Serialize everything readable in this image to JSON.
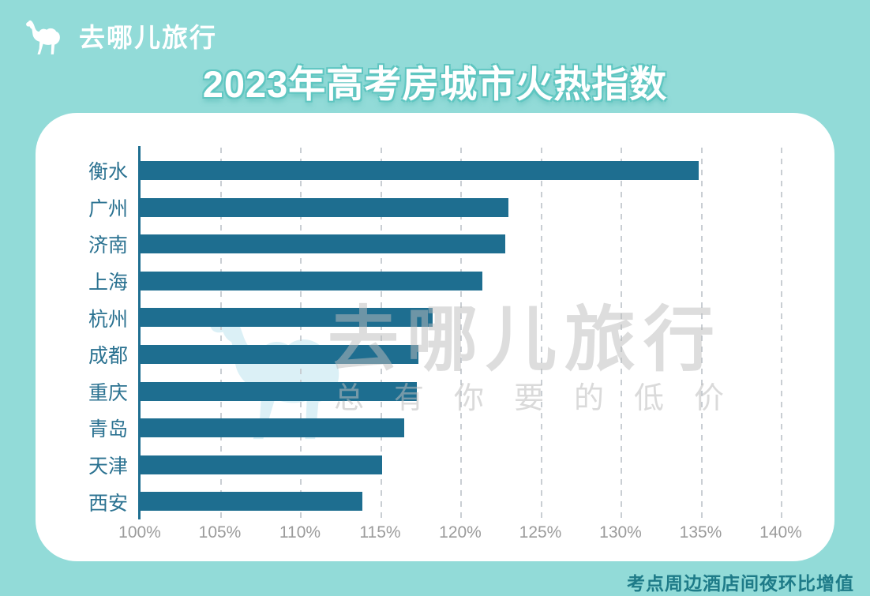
{
  "brand": {
    "name": "去哪儿旅行"
  },
  "title": "2023年高考房城市火热指数",
  "watermark": {
    "brand": "去哪儿旅行",
    "slogan": "总有你要的低价"
  },
  "caption": "考点周边酒店间夜环比增值",
  "colors": {
    "background": "#92DBD8",
    "card": "#FFFFFF",
    "bar": "#1E6E90",
    "category_label": "#2B7291",
    "tick_label": "#9B9B9B",
    "caption": "#1E7B88",
    "title_text": "#FFFFFF",
    "title_outline": "#5FC6C1"
  },
  "chart_data": {
    "type": "bar",
    "orientation": "horizontal",
    "title": "2023年高考房城市火热指数",
    "categories": [
      "衡水",
      "广州",
      "济南",
      "上海",
      "杭州",
      "成都",
      "重庆",
      "青岛",
      "天津",
      "西安"
    ],
    "values": [
      134.9,
      123.0,
      122.8,
      121.4,
      118.3,
      117.4,
      117.3,
      116.5,
      115.1,
      113.9
    ],
    "unit": "%",
    "xlabel": "",
    "ylabel": "",
    "xlim": [
      100,
      140
    ],
    "x_ticks": [
      "100%",
      "105%",
      "110%",
      "115%",
      "120%",
      "125%",
      "130%",
      "135%",
      "140%"
    ],
    "grid": "vertical-dashed",
    "legend": "none",
    "bar_color": "#1E6E90",
    "note": "考点周边酒店间夜环比增值"
  }
}
